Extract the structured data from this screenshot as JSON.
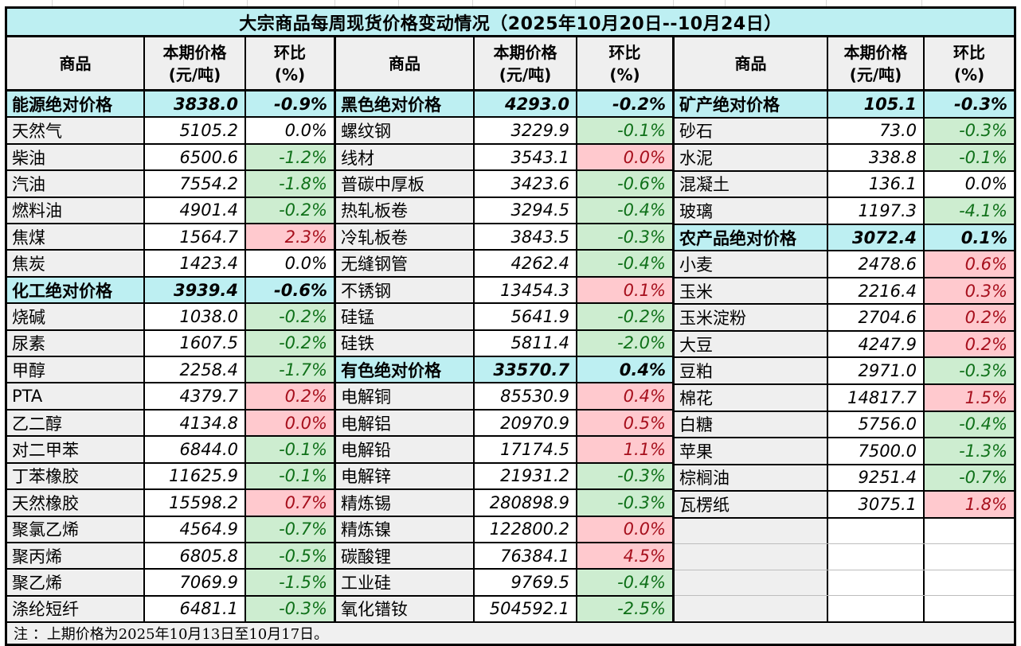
{
  "title": "大宗商品每周现货价格变动情况（2025年10月20日--10月24日）",
  "header": {
    "commodity": "商品",
    "price": "本期价格",
    "price_unit": "(元/吨)",
    "change": "环比",
    "change_unit": "(%)"
  },
  "note": "注 ：上期价格为2025年10月13日至10月17日。",
  "colors": {
    "section_bg": "#bdeff2",
    "label_bg": "#efefef",
    "positive_bg": "#ffc9ce",
    "positive_text": "#a60f1c",
    "negative_bg": "#cdedd0",
    "negative_text": "#0f7019",
    "border": "#000000"
  },
  "groups": [
    {
      "rows": [
        {
          "name": "能源绝对价格",
          "price": "3838.0",
          "change": "-0.9%",
          "type": "section",
          "cs": "none"
        },
        {
          "name": "天然气",
          "price": "5105.2",
          "change": "0.0%",
          "type": "item",
          "cs": "none"
        },
        {
          "name": "柴油",
          "price": "6500.6",
          "change": "-1.2%",
          "type": "item",
          "cs": "green"
        },
        {
          "name": "汽油",
          "price": "7554.2",
          "change": "-1.8%",
          "type": "item",
          "cs": "green"
        },
        {
          "name": "燃料油",
          "price": "4901.4",
          "change": "-0.2%",
          "type": "item",
          "cs": "green"
        },
        {
          "name": "焦煤",
          "price": "1564.7",
          "change": "2.3%",
          "type": "item",
          "cs": "pink"
        },
        {
          "name": "焦炭",
          "price": "1423.4",
          "change": "0.0%",
          "type": "item",
          "cs": "none"
        },
        {
          "name": "化工绝对价格",
          "price": "3939.4",
          "change": "-0.6%",
          "type": "section",
          "cs": "none"
        },
        {
          "name": "烧碱",
          "price": "1038.0",
          "change": "-0.2%",
          "type": "item",
          "cs": "green"
        },
        {
          "name": "尿素",
          "price": "1607.5",
          "change": "-0.2%",
          "type": "item",
          "cs": "green"
        },
        {
          "name": "甲醇",
          "price": "2258.4",
          "change": "-1.7%",
          "type": "item",
          "cs": "green"
        },
        {
          "name": "PTA",
          "price": "4379.7",
          "change": "0.2%",
          "type": "item",
          "cs": "pink"
        },
        {
          "name": "乙二醇",
          "price": "4134.8",
          "change": "0.0%",
          "type": "item",
          "cs": "pink"
        },
        {
          "name": "对二甲苯",
          "price": "6844.0",
          "change": "-0.1%",
          "type": "item",
          "cs": "green"
        },
        {
          "name": "丁苯橡胶",
          "price": "11625.9",
          "change": "-0.1%",
          "type": "item",
          "cs": "green"
        },
        {
          "name": "天然橡胶",
          "price": "15598.2",
          "change": "0.7%",
          "type": "item",
          "cs": "pink"
        },
        {
          "name": "聚氯乙烯",
          "price": "4564.9",
          "change": "-0.7%",
          "type": "item",
          "cs": "green"
        },
        {
          "name": "聚丙烯",
          "price": "6805.8",
          "change": "-0.5%",
          "type": "item",
          "cs": "green"
        },
        {
          "name": "聚乙烯",
          "price": "7069.9",
          "change": "-1.5%",
          "type": "item",
          "cs": "green"
        },
        {
          "name": "涤纶短纤",
          "price": "6481.1",
          "change": "-0.3%",
          "type": "item",
          "cs": "green"
        }
      ]
    },
    {
      "rows": [
        {
          "name": "黑色绝对价格",
          "price": "4293.0",
          "change": "-0.2%",
          "type": "section",
          "cs": "none"
        },
        {
          "name": "螺纹钢",
          "price": "3229.9",
          "change": "-0.1%",
          "type": "item",
          "cs": "green"
        },
        {
          "name": "线材",
          "price": "3543.1",
          "change": "0.0%",
          "type": "item",
          "cs": "pink"
        },
        {
          "name": "普碳中厚板",
          "price": "3423.6",
          "change": "-0.6%",
          "type": "item",
          "cs": "green"
        },
        {
          "name": "热轧板卷",
          "price": "3294.5",
          "change": "-0.4%",
          "type": "item",
          "cs": "green"
        },
        {
          "name": "冷轧板卷",
          "price": "3843.5",
          "change": "-0.3%",
          "type": "item",
          "cs": "green"
        },
        {
          "name": "无缝钢管",
          "price": "4262.4",
          "change": "-0.4%",
          "type": "item",
          "cs": "green"
        },
        {
          "name": "不锈钢",
          "price": "13454.3",
          "change": "0.1%",
          "type": "item",
          "cs": "pink"
        },
        {
          "name": "硅锰",
          "price": "5641.9",
          "change": "-0.2%",
          "type": "item",
          "cs": "green"
        },
        {
          "name": "硅铁",
          "price": "5811.4",
          "change": "-2.0%",
          "type": "item",
          "cs": "green"
        },
        {
          "name": "有色绝对价格",
          "price": "33570.7",
          "change": "0.4%",
          "type": "section",
          "cs": "none"
        },
        {
          "name": "电解铜",
          "price": "85530.9",
          "change": "0.4%",
          "type": "item",
          "cs": "pink"
        },
        {
          "name": "电解铝",
          "price": "20970.9",
          "change": "0.5%",
          "type": "item",
          "cs": "pink"
        },
        {
          "name": "电解铅",
          "price": "17174.5",
          "change": "1.1%",
          "type": "item",
          "cs": "pink"
        },
        {
          "name": "电解锌",
          "price": "21931.2",
          "change": "-0.3%",
          "type": "item",
          "cs": "green"
        },
        {
          "name": "精炼锡",
          "price": "280898.9",
          "change": "-0.3%",
          "type": "item",
          "cs": "green"
        },
        {
          "name": "精炼镍",
          "price": "122800.2",
          "change": "0.0%",
          "type": "item",
          "cs": "pink"
        },
        {
          "name": "碳酸锂",
          "price": "76384.1",
          "change": "4.5%",
          "type": "item",
          "cs": "pink"
        },
        {
          "name": "工业硅",
          "price": "9769.5",
          "change": "-0.4%",
          "type": "item",
          "cs": "green"
        },
        {
          "name": "氧化镨钕",
          "price": "504592.1",
          "change": "-2.5%",
          "type": "item",
          "cs": "green"
        }
      ]
    },
    {
      "rows": [
        {
          "name": "矿产绝对价格",
          "price": "105.1",
          "change": "-0.3%",
          "type": "section",
          "cs": "none"
        },
        {
          "name": "砂石",
          "price": "73.0",
          "change": "-0.3%",
          "type": "item",
          "cs": "green"
        },
        {
          "name": "水泥",
          "price": "338.8",
          "change": "-0.1%",
          "type": "item",
          "cs": "green"
        },
        {
          "name": "混凝土",
          "price": "136.1",
          "change": "0.0%",
          "type": "item",
          "cs": "none"
        },
        {
          "name": "玻璃",
          "price": "1197.3",
          "change": "-4.1%",
          "type": "item",
          "cs": "green"
        },
        {
          "name": "农产品绝对价格",
          "price": "3072.4",
          "change": "0.1%",
          "type": "section",
          "cs": "none"
        },
        {
          "name": "小麦",
          "price": "2478.6",
          "change": "0.6%",
          "type": "item",
          "cs": "pink"
        },
        {
          "name": "玉米",
          "price": "2216.4",
          "change": "0.3%",
          "type": "item",
          "cs": "pink"
        },
        {
          "name": "玉米淀粉",
          "price": "2704.6",
          "change": "0.2%",
          "type": "item",
          "cs": "pink"
        },
        {
          "name": "大豆",
          "price": "4247.9",
          "change": "0.2%",
          "type": "item",
          "cs": "pink"
        },
        {
          "name": "豆粕",
          "price": "2971.0",
          "change": "-0.3%",
          "type": "item",
          "cs": "green"
        },
        {
          "name": "棉花",
          "price": "14817.7",
          "change": "1.5%",
          "type": "item",
          "cs": "pink"
        },
        {
          "name": "白糖",
          "price": "5756.0",
          "change": "-0.4%",
          "type": "item",
          "cs": "green"
        },
        {
          "name": "苹果",
          "price": "7500.0",
          "change": "-1.3%",
          "type": "item",
          "cs": "green"
        },
        {
          "name": "棕榈油",
          "price": "9251.4",
          "change": "-0.7%",
          "type": "item",
          "cs": "green"
        },
        {
          "name": "瓦楞纸",
          "price": "3075.1",
          "change": "1.8%",
          "type": "item",
          "cs": "pink"
        },
        {
          "name": "",
          "price": "",
          "change": "",
          "type": "empty",
          "cs": "none"
        },
        {
          "name": "",
          "price": "",
          "change": "",
          "type": "empty",
          "cs": "none"
        },
        {
          "name": "",
          "price": "",
          "change": "",
          "type": "empty",
          "cs": "none"
        },
        {
          "name": "",
          "price": "",
          "change": "",
          "type": "empty",
          "cs": "none"
        }
      ]
    }
  ]
}
